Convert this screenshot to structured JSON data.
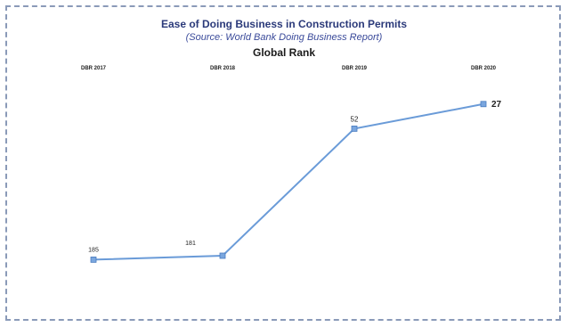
{
  "chart_data": {
    "type": "line",
    "title": "Ease of Doing Business in Construction Permits",
    "subtitle": "(Source: World Bank Doing Business Report)",
    "ylabel": "Global Rank",
    "categories": [
      "DBR 2017",
      "DBR 2018",
      "DBR 2019",
      "DBR 2020"
    ],
    "series": [
      {
        "values": [
          185,
          181,
          52,
          27
        ],
        "data_labels": [
          "185",
          "181",
          "52",
          "27"
        ]
      }
    ],
    "y_inverted": true,
    "ylim": [
      10,
      200
    ],
    "grid": false,
    "legend": "none",
    "colors": {
      "line": "#6a9bd8",
      "marker": "#7aa6de",
      "title": "#2b3a7a"
    }
  }
}
